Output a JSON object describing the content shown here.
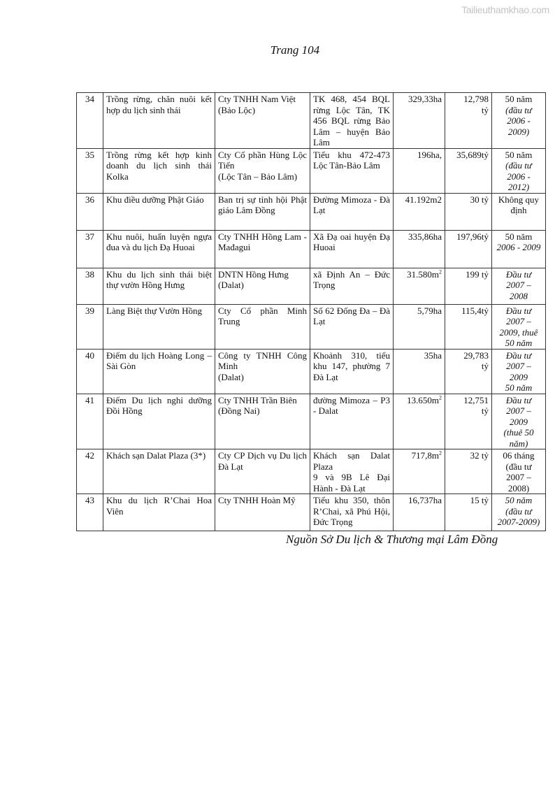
{
  "watermark": "Tailieuthamkhao.com",
  "page_title": "Trang 104",
  "rows": [
    {
      "no": "34",
      "project": "Trồng rừng, chăn nuôi kết hợp du lịch sinh thái",
      "investor": "Cty TNHH Nam Việt\n(Bảo Lộc)",
      "location": "TK 468, 454 BQL rừng Lộc Tân, TK 456 BQL rừng Bảo Lâm – huyện Bảo Lâm",
      "area": "329,33ha",
      "area_sup": "",
      "capital": "12,798\ntỷ",
      "period": "50 năm",
      "period_italic": "(đầu tư\n2006 -\n2009)"
    },
    {
      "no": "35",
      "project": "Trồng rừng kết hợp kinh doanh du lịch sinh thái Kolka",
      "investor": "Cty Cổ phần Hùng Lộc Tiến\n(Lộc Tân – Bảo Lâm)",
      "location": "Tiểu khu 472-473 Lộc Tân-Bảo Lâm",
      "area": "196ha,",
      "area_sup": "",
      "capital": "35,689tỷ",
      "period": "50 năm",
      "period_italic": "(đầu tư\n2006 -\n2012)"
    },
    {
      "no": "36",
      "project": "Khu điều dưỡng Phật Giáo",
      "investor": "Ban trị sự tỉnh hội Phật giáo Lâm Đồng",
      "location": "Đường Mimoza - Đà Lạt",
      "area": "41.192m2",
      "area_sup": "",
      "capital": "30 tỷ",
      "period": "Không quy định",
      "period_italic": ""
    },
    {
      "no": "37",
      "project": "Khu nuôi, huấn luyện ngựa đua và du lịch Đạ Huoai",
      "investor": "Cty TNHH Hồng Lam - Mađagui",
      "location": "Xã Đạ oai huyện Đạ Huoai",
      "area": "335,86ha",
      "area_sup": "",
      "capital": "197,96tỷ",
      "period": "50 năm",
      "period_italic": "2006 - 2009"
    },
    {
      "no": "38",
      "project": "Khu du lịch sinh thái biệt thự vườn Hồng Hưng",
      "investor": "DNTN Hồng Hưng\n(Dalat)",
      "location": "xã Định An – Đức Trọng",
      "area": "31.580m",
      "area_sup": "2",
      "capital": "199 tỷ",
      "period": "",
      "period_italic": "Đầu tư\n2007 –\n2008"
    },
    {
      "no": "39",
      "project": "Làng Biệt thự Vườn Hồng",
      "investor": "Cty Cổ phần Minh Trung",
      "location": "Số 62 Đống Đa – Đà Lạt",
      "area": "5,79ha",
      "area_sup": "",
      "capital": "115,4tỷ",
      "period": "",
      "period_italic": "Đầu tư\n2007 –\n2009, thuê\n50 năm"
    },
    {
      "no": "40",
      "project": "Điểm du lịch Hoàng Long – Sài Gòn",
      "investor": "Công ty TNHH Công Minh\n(Dalat)",
      "location": "Khoảnh 310, tiểu khu 147, phường 7 Đà Lạt",
      "area": "35ha",
      "area_sup": "",
      "capital": "29,783\ntỷ",
      "period": "",
      "period_italic": "Đầu tư\n2007 –\n2009\n50 năm"
    },
    {
      "no": "41",
      "project": "Điểm Du lịch nghỉ dưỡng Đồi Hồng",
      "investor": "Cty TNHH Trần Biên\n(Đồng Nai)",
      "location": "đường Mimoza – P3 - Dalat",
      "area": "13.650m",
      "area_sup": "2",
      "capital": "12,751\ntỷ",
      "period": "",
      "period_italic": "Đầu tư\n2007 –\n2009\n(thuê 50\nnăm)"
    },
    {
      "no": "42",
      "project": "Khách sạn Dalat Plaza (3*)",
      "investor": "Cty CP Dịch vụ Du lịch Đà Lạt",
      "location": "Khách sạn Dalat Plaza\n9 và 9B Lê Đại Hành - Đà Lạt",
      "area": "717,8m",
      "area_sup": "2",
      "capital": "32 tỷ",
      "period": "06 tháng\n(đầu tư\n2007 –\n2008)",
      "period_italic": ""
    },
    {
      "no": "43",
      "project": "Khu du lịch R’Chai Hoa Viên",
      "investor": "Cty TNHH Hoàn Mỹ",
      "location": "Tiểu khu 350, thôn R’Chai, xã Phú Hội, Đức Trọng",
      "area": "16,737ha",
      "area_sup": "",
      "capital": "15 tỷ",
      "period": "",
      "period_italic": "50 năm\n(đầu tư\n2007-2009)"
    }
  ],
  "source": "Nguồn Sở Du lịch & Thương mại Lâm Đồng"
}
